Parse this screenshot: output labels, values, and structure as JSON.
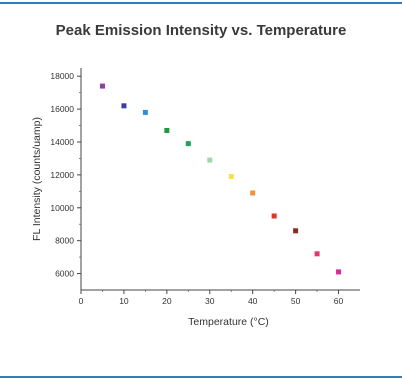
{
  "page": {
    "accent_rule_color": "#2f7fbf"
  },
  "chart_data": {
    "type": "scatter",
    "title": "Peak Emission Intensity vs. Temperature",
    "xlabel": "Temperature (°C)",
    "ylabel": "FL Intensity (counts/uamp)",
    "xlim": [
      0,
      65
    ],
    "ylim": [
      5000,
      18500
    ],
    "xticks": [
      0,
      10,
      20,
      30,
      40,
      50,
      60
    ],
    "yticks": [
      6000,
      8000,
      10000,
      12000,
      14000,
      16000,
      18000
    ],
    "grid": false,
    "legend": "none",
    "points": [
      {
        "x": 5,
        "y": 17400,
        "color": "#8e3fa0"
      },
      {
        "x": 10,
        "y": 16200,
        "color": "#3a3f9e"
      },
      {
        "x": 15,
        "y": 15800,
        "color": "#2e8fd8"
      },
      {
        "x": 20,
        "y": 14700,
        "color": "#1e9a3e"
      },
      {
        "x": 25,
        "y": 13900,
        "color": "#22a05a"
      },
      {
        "x": 30,
        "y": 12900,
        "color": "#9fd8a8"
      },
      {
        "x": 35,
        "y": 11900,
        "color": "#f4e340"
      },
      {
        "x": 40,
        "y": 10900,
        "color": "#f0923a"
      },
      {
        "x": 45,
        "y": 9500,
        "color": "#e2332a"
      },
      {
        "x": 50,
        "y": 8600,
        "color": "#8c2a1e"
      },
      {
        "x": 55,
        "y": 7200,
        "color": "#e6356d"
      },
      {
        "x": 60,
        "y": 6100,
        "color": "#e0249a"
      }
    ]
  }
}
